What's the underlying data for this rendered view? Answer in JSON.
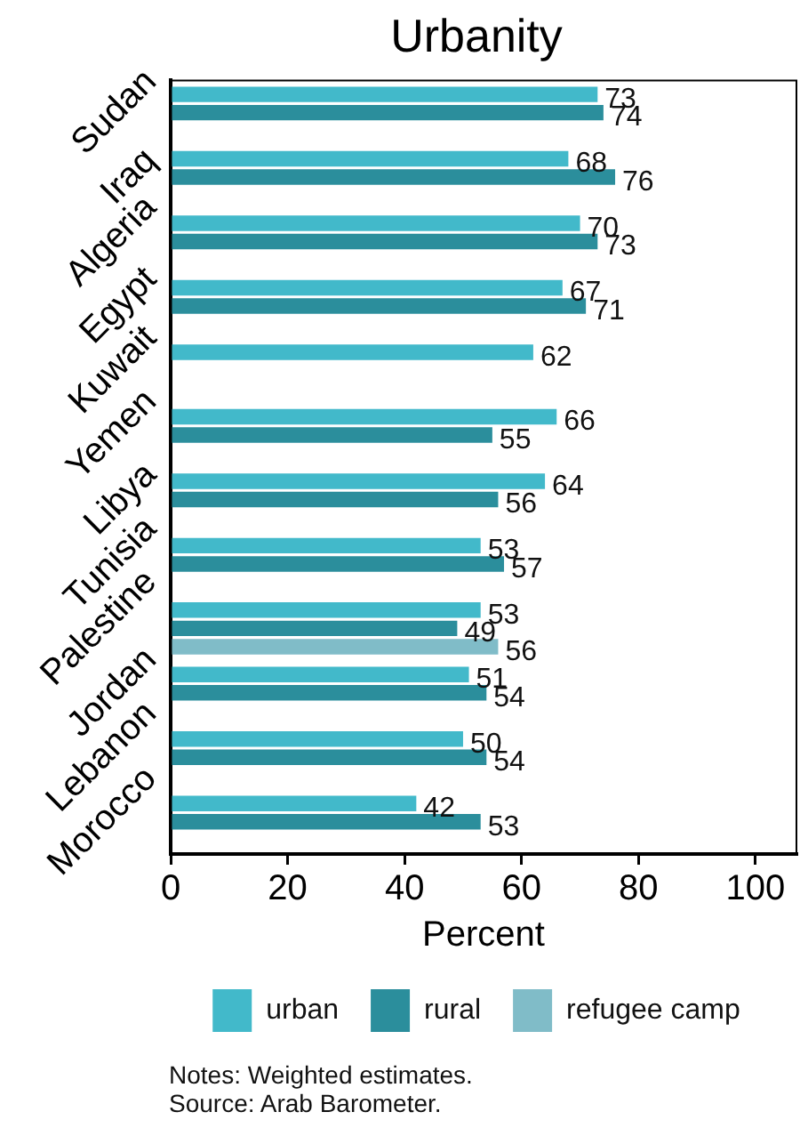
{
  "chart_data": {
    "type": "bar",
    "title": "Urbanity",
    "xlabel": "Percent",
    "orientation": "horizontal",
    "categories": [
      "Sudan",
      "Iraq",
      "Algeria",
      "Egypt",
      "Kuwait",
      "Yemen",
      "Libya",
      "Tunisia",
      "Palestine",
      "Jordan",
      "Lebanon",
      "Morocco"
    ],
    "series": [
      {
        "name": "urban",
        "color": "#42b9ca",
        "values": [
          73,
          68,
          70,
          67,
          62,
          66,
          64,
          53,
          53,
          51,
          50,
          42
        ]
      },
      {
        "name": "rural",
        "color": "#2b8e9c",
        "values": [
          74,
          76,
          73,
          71,
          null,
          55,
          56,
          57,
          49,
          54,
          54,
          53
        ]
      },
      {
        "name": "refugee camp",
        "color": "#80bcc8",
        "values": [
          null,
          null,
          null,
          null,
          null,
          null,
          null,
          null,
          56,
          null,
          null,
          null
        ]
      }
    ],
    "xlim": [
      0,
      107
    ],
    "xticks": [
      0,
      20,
      40,
      60,
      80,
      100
    ],
    "grid": false,
    "legend": "bottom",
    "data_labels": true,
    "annotations": [
      "Notes: Weighted estimates.",
      "Source: Arab Barometer."
    ]
  }
}
